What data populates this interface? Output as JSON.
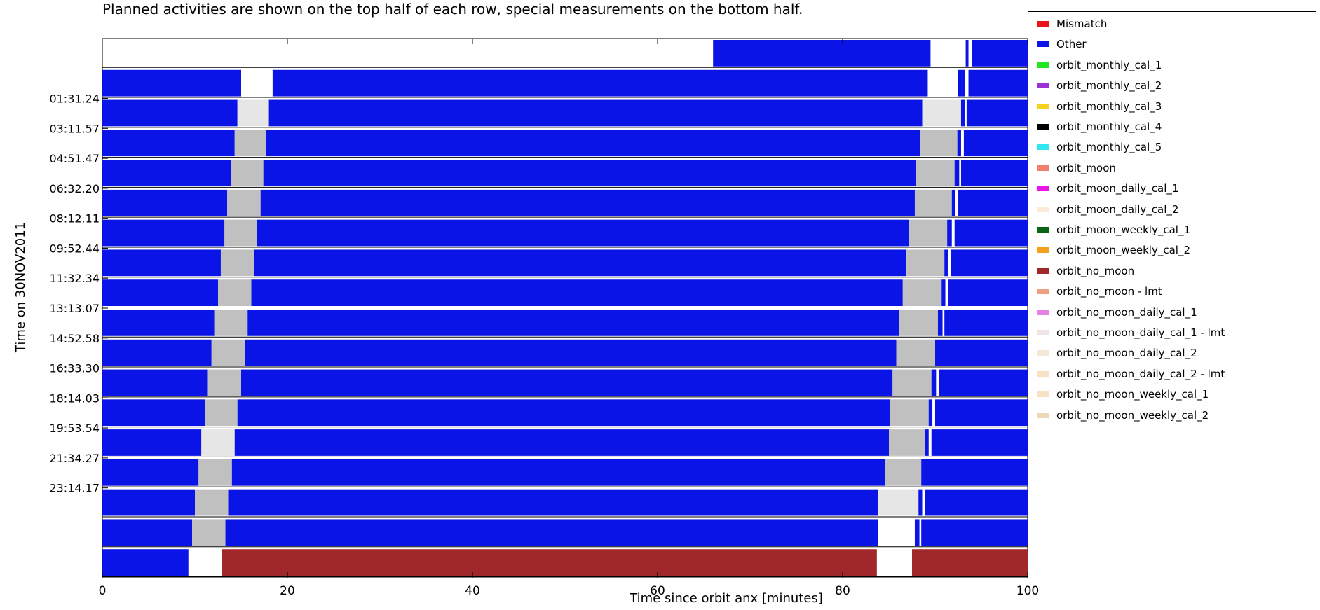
{
  "chart_data": {
    "type": "timeline",
    "subtitle": "Planned activities are shown on the top half of each row, special measurements on the bottom half.",
    "xlabel": "Time since orbit anx [minutes]",
    "ylabel": "Time on 30NOV2011",
    "xlim": [
      0,
      100
    ],
    "x_ticks": [
      0,
      20,
      40,
      60,
      80,
      100
    ],
    "row_labels": [
      "",
      "",
      "01:31.24",
      "03:11.57",
      "04:51.47",
      "06:32.20",
      "08:12.11",
      "09:52.44",
      "11:32.34",
      "13:13.07",
      "14:52.58",
      "16:33.30",
      "18:14.03",
      "19:53.54",
      "21:34.27",
      "23:14.17",
      "",
      ""
    ],
    "legend": [
      {
        "name": "Mismatch",
        "color": "#e8141a"
      },
      {
        "name": "Other",
        "color": "#0a14e6"
      },
      {
        "name": "orbit_monthly_cal_1",
        "color": "#22e622"
      },
      {
        "name": "orbit_monthly_cal_2",
        "color": "#9a32d6"
      },
      {
        "name": "orbit_monthly_cal_3",
        "color": "#f4d21e"
      },
      {
        "name": "orbit_monthly_cal_4",
        "color": "#000000"
      },
      {
        "name": "orbit_monthly_cal_5",
        "color": "#32e6f0"
      },
      {
        "name": "orbit_moon",
        "color": "#f08070"
      },
      {
        "name": "orbit_moon_daily_cal_1",
        "color": "#ea14e6"
      },
      {
        "name": "orbit_moon_daily_cal_2",
        "color": "#faead6"
      },
      {
        "name": "orbit_moon_weekly_cal_1",
        "color": "#0a6414"
      },
      {
        "name": "orbit_moon_weekly_cal_2",
        "color": "#f4a01e"
      },
      {
        "name": "orbit_no_moon",
        "color": "#a0282a"
      },
      {
        "name": "orbit_no_moon - lmt",
        "color": "#f0a080"
      },
      {
        "name": "orbit_no_moon_daily_cal_1",
        "color": "#e682e6"
      },
      {
        "name": "orbit_no_moon_daily_cal_1 - lmt",
        "color": "#f0e4e4"
      },
      {
        "name": "orbit_no_moon_daily_cal_2",
        "color": "#f4e8d8"
      },
      {
        "name": "orbit_no_moon_daily_cal_2 - lmt",
        "color": "#f8e0c8"
      },
      {
        "name": "orbit_no_moon_weekly_cal_1",
        "color": "#f6e2c4"
      },
      {
        "name": "orbit_no_moon_weekly_cal_2",
        "color": "#ecd8b8"
      }
    ],
    "colors": {
      "other": "#0a14e6",
      "gap_light": "#e6e6e6",
      "gap_gray": "#c0c0c0",
      "no_moon": "#a0282a"
    },
    "rows": [
      {
        "segments": [
          [
            66,
            89.5,
            "other"
          ],
          [
            93.3,
            93.6,
            "other"
          ],
          [
            94,
            100,
            "other"
          ]
        ]
      },
      {
        "segments": [
          [
            0,
            15,
            "other"
          ],
          [
            18.4,
            89.2,
            "other"
          ],
          [
            92.5,
            93.2,
            "other"
          ],
          [
            93.6,
            100,
            "other"
          ]
        ]
      },
      {
        "segments": [
          [
            0,
            14.6,
            "other"
          ],
          [
            14.6,
            18,
            "gap_light"
          ],
          [
            18,
            88.6,
            "other"
          ],
          [
            88.6,
            92.8,
            "gap_light"
          ],
          [
            92.8,
            93.2,
            "other"
          ],
          [
            93.4,
            100,
            "other"
          ]
        ]
      },
      {
        "segments": [
          [
            0,
            14.3,
            "other"
          ],
          [
            14.3,
            17.7,
            "gap_gray"
          ],
          [
            17.7,
            88.4,
            "other"
          ],
          [
            88.4,
            92.4,
            "gap_gray"
          ],
          [
            92.4,
            92.8,
            "other"
          ],
          [
            93.1,
            100,
            "other"
          ]
        ]
      },
      {
        "segments": [
          [
            0,
            13.9,
            "other"
          ],
          [
            13.9,
            17.4,
            "gap_gray"
          ],
          [
            17.4,
            87.9,
            "other"
          ],
          [
            87.9,
            92.1,
            "gap_gray"
          ],
          [
            92.1,
            92.6,
            "other"
          ],
          [
            92.8,
            100,
            "other"
          ]
        ]
      },
      {
        "segments": [
          [
            0,
            13.5,
            "other"
          ],
          [
            13.5,
            17.1,
            "gap_gray"
          ],
          [
            17.1,
            87.8,
            "other"
          ],
          [
            87.8,
            91.8,
            "gap_gray"
          ],
          [
            91.8,
            92.2,
            "other"
          ],
          [
            92.5,
            100,
            "other"
          ]
        ]
      },
      {
        "segments": [
          [
            0,
            13.2,
            "other"
          ],
          [
            13.2,
            16.7,
            "gap_gray"
          ],
          [
            16.7,
            87.2,
            "other"
          ],
          [
            87.2,
            91.3,
            "gap_gray"
          ],
          [
            91.3,
            91.8,
            "other"
          ],
          [
            92.1,
            100,
            "other"
          ]
        ]
      },
      {
        "segments": [
          [
            0,
            12.8,
            "other"
          ],
          [
            12.8,
            16.4,
            "gap_gray"
          ],
          [
            16.4,
            86.9,
            "other"
          ],
          [
            86.9,
            91,
            "gap_gray"
          ],
          [
            91,
            91.4,
            "other"
          ],
          [
            91.7,
            100,
            "other"
          ]
        ]
      },
      {
        "segments": [
          [
            0,
            12.5,
            "other"
          ],
          [
            12.5,
            16.1,
            "gap_gray"
          ],
          [
            16.1,
            86.5,
            "other"
          ],
          [
            86.5,
            90.7,
            "gap_gray"
          ],
          [
            90.7,
            91.1,
            "other"
          ],
          [
            91.4,
            100,
            "other"
          ]
        ]
      },
      {
        "segments": [
          [
            0,
            12.1,
            "other"
          ],
          [
            12.1,
            15.7,
            "gap_gray"
          ],
          [
            15.7,
            86.1,
            "other"
          ],
          [
            86.1,
            90.3,
            "gap_gray"
          ],
          [
            90.3,
            90.8,
            "other"
          ],
          [
            91,
            100,
            "other"
          ]
        ]
      },
      {
        "segments": [
          [
            0,
            11.8,
            "other"
          ],
          [
            11.8,
            15.4,
            "gap_gray"
          ],
          [
            15.4,
            85.8,
            "other"
          ],
          [
            85.8,
            90,
            "gap_gray"
          ],
          [
            90,
            100,
            "other"
          ]
        ]
      },
      {
        "segments": [
          [
            0,
            11.4,
            "other"
          ],
          [
            11.4,
            15,
            "gap_gray"
          ],
          [
            15,
            85.4,
            "other"
          ],
          [
            85.4,
            89.6,
            "gap_gray"
          ],
          [
            89.6,
            90.1,
            "other"
          ],
          [
            90.4,
            100,
            "other"
          ]
        ]
      },
      {
        "segments": [
          [
            0,
            11.1,
            "other"
          ],
          [
            11.1,
            14.6,
            "gap_gray"
          ],
          [
            14.6,
            85.1,
            "other"
          ],
          [
            85.1,
            89.3,
            "gap_gray"
          ],
          [
            89.3,
            89.7,
            "other"
          ],
          [
            90,
            100,
            "other"
          ]
        ]
      },
      {
        "segments": [
          [
            0,
            10.7,
            "other"
          ],
          [
            10.7,
            14.3,
            "gap_light"
          ],
          [
            14.3,
            85,
            "other"
          ],
          [
            85,
            88.9,
            "gap_gray"
          ],
          [
            88.9,
            89.3,
            "other"
          ],
          [
            89.6,
            100,
            "other"
          ]
        ]
      },
      {
        "segments": [
          [
            0,
            10.4,
            "other"
          ],
          [
            10.4,
            14,
            "gap_gray"
          ],
          [
            14,
            84.6,
            "other"
          ],
          [
            84.6,
            88.5,
            "gap_gray"
          ],
          [
            88.5,
            100,
            "other"
          ]
        ]
      },
      {
        "segments": [
          [
            0,
            10,
            "other"
          ],
          [
            10,
            13.6,
            "gap_gray"
          ],
          [
            13.6,
            83.8,
            "other"
          ],
          [
            83.8,
            88.2,
            "gap_light"
          ],
          [
            88.2,
            88.6,
            "other"
          ],
          [
            88.9,
            100,
            "other"
          ]
        ]
      },
      {
        "segments": [
          [
            0,
            9.7,
            "other"
          ],
          [
            9.7,
            13.3,
            "gap_gray"
          ],
          [
            13.3,
            83.8,
            "other"
          ],
          [
            87.8,
            88.3,
            "other"
          ],
          [
            88.5,
            100,
            "other"
          ]
        ]
      },
      {
        "segments": [
          [
            0,
            9.3,
            "other"
          ],
          [
            12.9,
            83.7,
            "no_moon"
          ],
          [
            87.5,
            100,
            "no_moon"
          ]
        ]
      }
    ]
  }
}
